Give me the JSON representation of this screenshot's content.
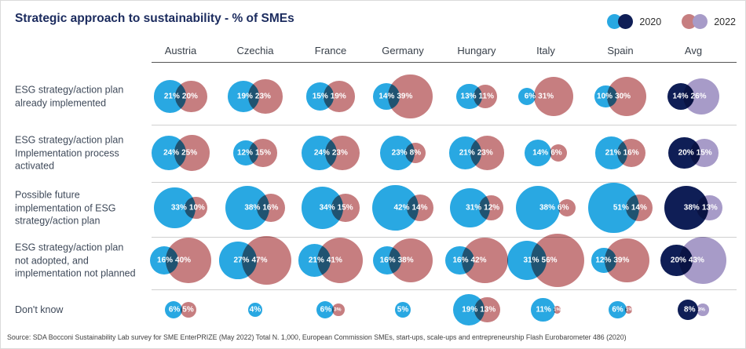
{
  "title": "Strategic approach to sustainability - % of SMEs",
  "legend": {
    "items": [
      {
        "label": "2020",
        "circle_colors": [
          "#29A8E2",
          "#0F1E56"
        ]
      },
      {
        "label": "2022",
        "circle_colors": [
          "#C67E80",
          "#A79BC8"
        ]
      }
    ]
  },
  "colors": {
    "blue_2020": "#29A8E2",
    "navy_2020_avg": "#0F1E56",
    "salmon_2022": "#C67E80",
    "purple_2022_avg": "#A79BC8",
    "title_navy": "#1B2B5E",
    "row_label_text": "#3F4A5A",
    "header_text": "#373F49",
    "separator_gray": "#CFCFCF",
    "header_rule_gray": "#555555",
    "bubble_label_text": "#FFFFFF"
  },
  "source": "Source: SDA Bocconi Sustainability Lab survey for SME EnterPRIZE (May 2022) Total N. 1,000, European Commission SMEs, start-ups, scale-ups and entrepreneurship Flash Eurobarometer 486 (2020)",
  "chart_data": {
    "type": "table",
    "variant": "paired-bubble grid (venn-style overlapping circles, bubble area proportional to %)",
    "title": "Strategic approach to sustainability - % of SMEs",
    "units": "% of SMEs",
    "legend_position": "top-right",
    "series_years": [
      "2020",
      "2022"
    ],
    "columns": [
      "Austria",
      "Czechia",
      "France",
      "Germany",
      "Hungary",
      "Italy",
      "Spain",
      "Avg"
    ],
    "color_note": "Avg column uses dark navy (2020) and light purple (2022); other columns use light blue (2020) and salmon (2022). null = no bubble shown.",
    "rows": [
      {
        "label": "ESG strategy/action plan\nalready implemented",
        "values_2020": [
          21,
          19,
          15,
          14,
          13,
          6,
          10,
          14
        ],
        "values_2022": [
          20,
          23,
          19,
          39,
          11,
          31,
          30,
          26
        ]
      },
      {
        "label": "ESG strategy/action plan\nImplementation process\nactivated",
        "values_2020": [
          24,
          12,
          24,
          23,
          21,
          14,
          21,
          20
        ],
        "values_2022": [
          25,
          15,
          23,
          8,
          23,
          6,
          16,
          15
        ]
      },
      {
        "label": "Possible future\nimplementation of ESG\nstrategy/action plan",
        "values_2020": [
          33,
          38,
          34,
          42,
          31,
          38,
          51,
          38
        ],
        "values_2022": [
          10,
          16,
          15,
          14,
          12,
          6,
          14,
          13
        ]
      },
      {
        "label": "ESG strategy/action plan\nnot adopted, and\nimplementation not planned",
        "values_2020": [
          16,
          27,
          21,
          16,
          16,
          31,
          12,
          20
        ],
        "values_2022": [
          40,
          47,
          41,
          38,
          42,
          56,
          39,
          43
        ]
      },
      {
        "label": "Don't know",
        "values_2020": [
          6,
          4,
          6,
          5,
          19,
          11,
          6,
          8
        ],
        "values_2022": [
          5,
          null,
          3,
          null,
          13,
          1,
          1,
          3
        ]
      }
    ]
  }
}
